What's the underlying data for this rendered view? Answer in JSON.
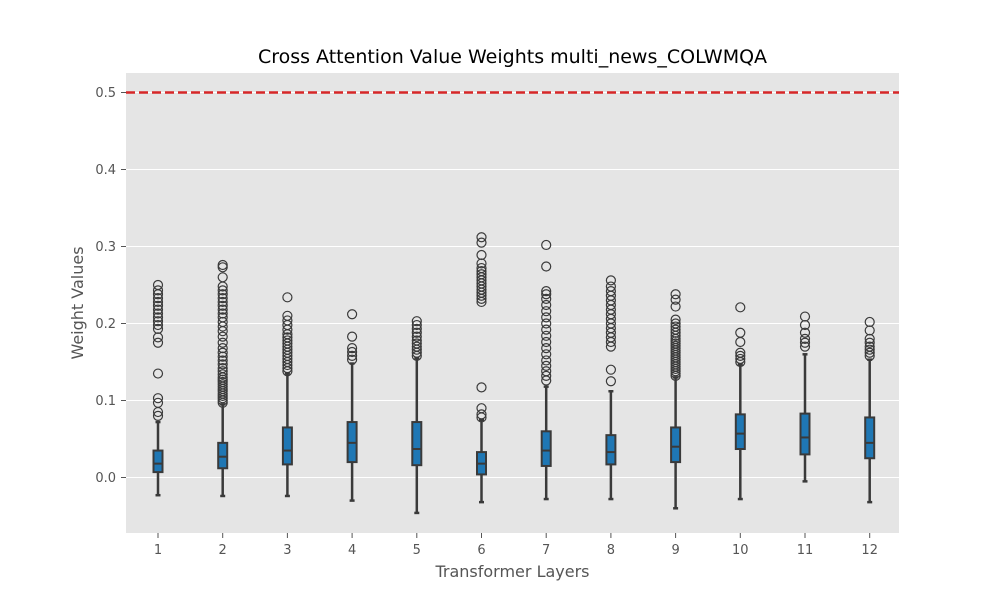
{
  "chart_data": {
    "type": "box",
    "title": "Cross Attention Value Weights multi_news_COLWMQA",
    "xlabel": "Transformer Layers",
    "ylabel": "Weight Values",
    "ylim": [
      -0.07,
      0.525
    ],
    "yticks": [
      0.0,
      0.1,
      0.2,
      0.3,
      0.4,
      0.5
    ],
    "ytick_labels": [
      "0.0",
      "0.1",
      "0.2",
      "0.3",
      "0.4",
      "0.5"
    ],
    "grid": true,
    "categories": [
      "1",
      "2",
      "3",
      "4",
      "5",
      "6",
      "7",
      "8",
      "9",
      "10",
      "11",
      "12"
    ],
    "reference_line": {
      "y": 0.5,
      "style": "dashed",
      "color": "#d62728"
    },
    "colors": {
      "plot_background": "#e5e5e5",
      "grid": "#ffffff",
      "box_fill": "#1f77b4",
      "box_edge": "#3a3a3a",
      "outlier_edge": "#3a3a3a"
    },
    "boxes": [
      {
        "label": "1",
        "whisker_low": -0.023,
        "q1": 0.007,
        "median": 0.018,
        "q3": 0.035,
        "whisker_high": 0.072,
        "outliers": [
          0.08,
          0.085,
          0.097,
          0.103,
          0.135,
          0.175,
          0.182,
          0.193,
          0.198,
          0.203,
          0.208,
          0.213,
          0.218,
          0.223,
          0.228,
          0.233,
          0.238,
          0.243,
          0.25
        ]
      },
      {
        "label": "2",
        "whisker_low": -0.024,
        "q1": 0.012,
        "median": 0.027,
        "q3": 0.045,
        "whisker_high": 0.095,
        "outliers": [
          0.097,
          0.1,
          0.103,
          0.106,
          0.109,
          0.112,
          0.115,
          0.118,
          0.121,
          0.124,
          0.127,
          0.13,
          0.134,
          0.138,
          0.142,
          0.147,
          0.152,
          0.157,
          0.162,
          0.168,
          0.175,
          0.183,
          0.19,
          0.196,
          0.202,
          0.208,
          0.213,
          0.218,
          0.223,
          0.228,
          0.233,
          0.238,
          0.243,
          0.248,
          0.26,
          0.273,
          0.276
        ]
      },
      {
        "label": "3",
        "whisker_low": -0.024,
        "q1": 0.017,
        "median": 0.035,
        "q3": 0.065,
        "whisker_high": 0.135,
        "outliers": [
          0.138,
          0.142,
          0.146,
          0.15,
          0.154,
          0.158,
          0.162,
          0.166,
          0.17,
          0.174,
          0.178,
          0.182,
          0.186,
          0.192,
          0.198,
          0.204,
          0.21,
          0.234
        ]
      },
      {
        "label": "4",
        "whisker_low": -0.03,
        "q1": 0.02,
        "median": 0.045,
        "q3": 0.072,
        "whisker_high": 0.148,
        "outliers": [
          0.153,
          0.158,
          0.163,
          0.168,
          0.183,
          0.212
        ]
      },
      {
        "label": "5",
        "whisker_low": -0.046,
        "q1": 0.016,
        "median": 0.037,
        "q3": 0.072,
        "whisker_high": 0.155,
        "outliers": [
          0.158,
          0.162,
          0.166,
          0.17,
          0.174,
          0.178,
          0.183,
          0.188,
          0.193,
          0.198,
          0.203
        ]
      },
      {
        "label": "6",
        "whisker_low": -0.032,
        "q1": 0.004,
        "median": 0.018,
        "q3": 0.033,
        "whisker_high": 0.075,
        "outliers": [
          0.078,
          0.082,
          0.09,
          0.117,
          0.228,
          0.232,
          0.236,
          0.24,
          0.244,
          0.248,
          0.252,
          0.256,
          0.26,
          0.264,
          0.268,
          0.272,
          0.278,
          0.289,
          0.305,
          0.312
        ]
      },
      {
        "label": "7",
        "whisker_low": -0.028,
        "q1": 0.015,
        "median": 0.035,
        "q3": 0.06,
        "whisker_high": 0.118,
        "outliers": [
          0.126,
          0.132,
          0.138,
          0.145,
          0.152,
          0.16,
          0.168,
          0.176,
          0.184,
          0.192,
          0.2,
          0.208,
          0.216,
          0.224,
          0.232,
          0.238,
          0.242,
          0.274,
          0.302
        ]
      },
      {
        "label": "8",
        "whisker_low": -0.028,
        "q1": 0.017,
        "median": 0.033,
        "q3": 0.055,
        "whisker_high": 0.112,
        "outliers": [
          0.125,
          0.14,
          0.17,
          0.176,
          0.182,
          0.188,
          0.194,
          0.2,
          0.206,
          0.212,
          0.218,
          0.224,
          0.23,
          0.236,
          0.242,
          0.248,
          0.256
        ]
      },
      {
        "label": "9",
        "whisker_low": -0.04,
        "q1": 0.02,
        "median": 0.04,
        "q3": 0.065,
        "whisker_high": 0.13,
        "outliers": [
          0.132,
          0.135,
          0.138,
          0.141,
          0.144,
          0.147,
          0.15,
          0.153,
          0.156,
          0.159,
          0.162,
          0.165,
          0.168,
          0.171,
          0.174,
          0.177,
          0.18,
          0.184,
          0.188,
          0.192,
          0.196,
          0.2,
          0.205,
          0.222,
          0.231,
          0.238
        ]
      },
      {
        "label": "10",
        "whisker_low": -0.028,
        "q1": 0.037,
        "median": 0.057,
        "q3": 0.082,
        "whisker_high": 0.147,
        "outliers": [
          0.15,
          0.154,
          0.158,
          0.162,
          0.176,
          0.188,
          0.221
        ]
      },
      {
        "label": "11",
        "whisker_low": -0.005,
        "q1": 0.03,
        "median": 0.052,
        "q3": 0.083,
        "whisker_high": 0.16,
        "outliers": [
          0.17,
          0.175,
          0.18,
          0.188,
          0.198,
          0.209
        ]
      },
      {
        "label": "12",
        "whisker_low": -0.032,
        "q1": 0.025,
        "median": 0.045,
        "q3": 0.078,
        "whisker_high": 0.153,
        "outliers": [
          0.158,
          0.162,
          0.166,
          0.17,
          0.175,
          0.18,
          0.191,
          0.202
        ]
      }
    ]
  }
}
